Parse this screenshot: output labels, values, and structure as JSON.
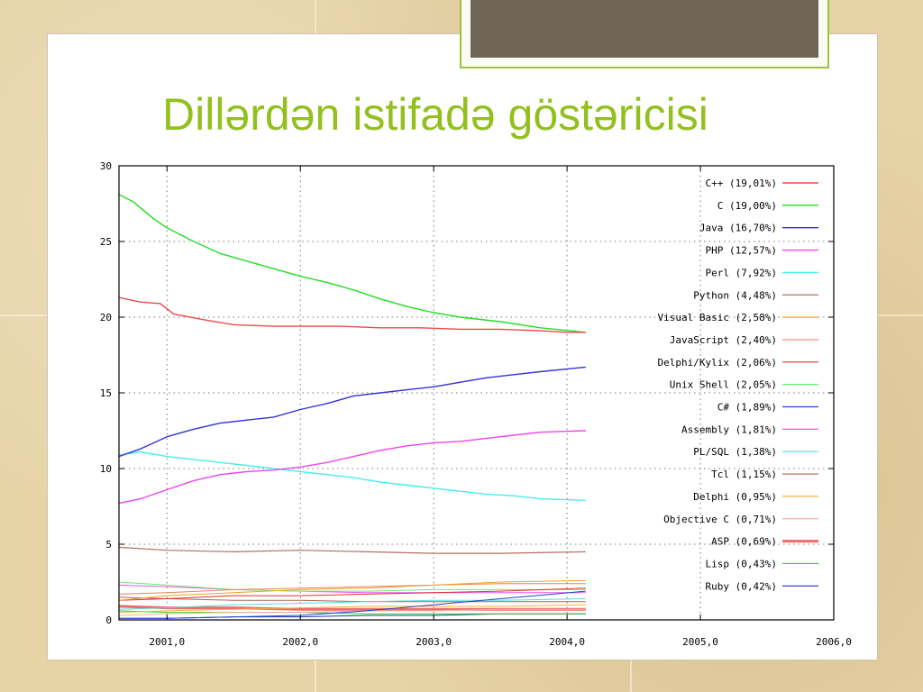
{
  "slide": {
    "title": "Dillərdən istifadə göstəricisi"
  },
  "colors": {
    "title": "#93c01f",
    "tab": "#6f6658",
    "tab_border": "#9cc43a"
  },
  "chart_data": {
    "type": "line",
    "title": "",
    "xlabel": "",
    "ylabel": "",
    "xlim": [
      2000.64,
      2006.0
    ],
    "ylim": [
      0,
      30
    ],
    "x_ticks": [
      "2001,0",
      "2002,0",
      "2003,0",
      "2004,0",
      "2005,0",
      "2006,0"
    ],
    "y_ticks": [
      "0",
      "5",
      "10",
      "15",
      "20",
      "25",
      "30"
    ],
    "grid": true,
    "legend_position": "top-right",
    "series": [
      {
        "name": "C++ (19,01%)",
        "color": "#f04848",
        "width": 1.4,
        "points": [
          [
            2000.64,
            21.3
          ],
          [
            2000.8,
            21.0
          ],
          [
            2000.95,
            20.9
          ],
          [
            2001.05,
            20.2
          ],
          [
            2001.3,
            19.8
          ],
          [
            2001.5,
            19.5
          ],
          [
            2001.8,
            19.4
          ],
          [
            2002.0,
            19.4
          ],
          [
            2002.3,
            19.4
          ],
          [
            2002.6,
            19.3
          ],
          [
            2002.9,
            19.3
          ],
          [
            2003.2,
            19.2
          ],
          [
            2003.5,
            19.2
          ],
          [
            2003.8,
            19.1
          ],
          [
            2004.0,
            19.0
          ],
          [
            2004.14,
            19.0
          ]
        ]
      },
      {
        "name": "C (19,00%)",
        "color": "#22dd22",
        "width": 1.4,
        "points": [
          [
            2000.64,
            28.1
          ],
          [
            2000.75,
            27.6
          ],
          [
            2000.9,
            26.5
          ],
          [
            2001.0,
            25.9
          ],
          [
            2001.2,
            25.0
          ],
          [
            2001.4,
            24.2
          ],
          [
            2001.6,
            23.7
          ],
          [
            2001.8,
            23.2
          ],
          [
            2002.0,
            22.7
          ],
          [
            2002.2,
            22.3
          ],
          [
            2002.4,
            21.8
          ],
          [
            2002.6,
            21.2
          ],
          [
            2002.8,
            20.7
          ],
          [
            2003.0,
            20.3
          ],
          [
            2003.2,
            20.0
          ],
          [
            2003.5,
            19.7
          ],
          [
            2003.8,
            19.3
          ],
          [
            2004.14,
            19.0
          ]
        ]
      },
      {
        "name": "Java (16,70%)",
        "color": "#3333dd",
        "width": 1.4,
        "points": [
          [
            2000.64,
            10.8
          ],
          [
            2000.8,
            11.3
          ],
          [
            2001.0,
            12.1
          ],
          [
            2001.2,
            12.6
          ],
          [
            2001.4,
            13.0
          ],
          [
            2001.6,
            13.2
          ],
          [
            2001.8,
            13.4
          ],
          [
            2002.0,
            13.9
          ],
          [
            2002.2,
            14.3
          ],
          [
            2002.4,
            14.8
          ],
          [
            2002.6,
            15.0
          ],
          [
            2002.8,
            15.2
          ],
          [
            2003.0,
            15.4
          ],
          [
            2003.2,
            15.7
          ],
          [
            2003.4,
            16.0
          ],
          [
            2003.6,
            16.2
          ],
          [
            2003.8,
            16.4
          ],
          [
            2004.14,
            16.7
          ]
        ]
      },
      {
        "name": "PHP (12,57%)",
        "color": "#ee44ee",
        "width": 1.4,
        "points": [
          [
            2000.64,
            7.7
          ],
          [
            2000.8,
            8.0
          ],
          [
            2001.0,
            8.6
          ],
          [
            2001.2,
            9.2
          ],
          [
            2001.4,
            9.6
          ],
          [
            2001.6,
            9.8
          ],
          [
            2001.8,
            9.9
          ],
          [
            2002.0,
            10.1
          ],
          [
            2002.2,
            10.4
          ],
          [
            2002.4,
            10.8
          ],
          [
            2002.6,
            11.2
          ],
          [
            2002.8,
            11.5
          ],
          [
            2003.0,
            11.7
          ],
          [
            2003.2,
            11.8
          ],
          [
            2003.4,
            12.0
          ],
          [
            2003.6,
            12.2
          ],
          [
            2003.8,
            12.4
          ],
          [
            2004.14,
            12.5
          ]
        ]
      },
      {
        "name": "Perl (7,92%)",
        "color": "#44eeee",
        "width": 1.4,
        "points": [
          [
            2000.64,
            10.9
          ],
          [
            2000.8,
            11.1
          ],
          [
            2001.0,
            10.8
          ],
          [
            2001.2,
            10.6
          ],
          [
            2001.4,
            10.4
          ],
          [
            2001.6,
            10.2
          ],
          [
            2001.8,
            10.0
          ],
          [
            2002.0,
            9.8
          ],
          [
            2002.2,
            9.6
          ],
          [
            2002.4,
            9.4
          ],
          [
            2002.6,
            9.1
          ],
          [
            2002.8,
            8.9
          ],
          [
            2003.0,
            8.7
          ],
          [
            2003.2,
            8.5
          ],
          [
            2003.4,
            8.3
          ],
          [
            2003.6,
            8.2
          ],
          [
            2003.8,
            8.0
          ],
          [
            2004.14,
            7.9
          ]
        ]
      },
      {
        "name": "Python (4,48%)",
        "color": "#b07060",
        "width": 1.2,
        "points": [
          [
            2000.64,
            4.8
          ],
          [
            2001.0,
            4.6
          ],
          [
            2001.5,
            4.5
          ],
          [
            2002.0,
            4.6
          ],
          [
            2002.5,
            4.5
          ],
          [
            2003.0,
            4.4
          ],
          [
            2003.5,
            4.4
          ],
          [
            2004.14,
            4.5
          ]
        ]
      },
      {
        "name": "Visual Basic (2,58%)",
        "color": "#f0a020",
        "width": 1.0,
        "points": [
          [
            2000.64,
            1.3
          ],
          [
            2001.0,
            1.6
          ],
          [
            2001.5,
            1.8
          ],
          [
            2002.0,
            2.0
          ],
          [
            2002.5,
            2.1
          ],
          [
            2003.0,
            2.3
          ],
          [
            2003.5,
            2.5
          ],
          [
            2004.14,
            2.6
          ]
        ]
      },
      {
        "name": "JavaScript (2,40%)",
        "color": "#f08060",
        "width": 1.0,
        "points": [
          [
            2000.64,
            1.7
          ],
          [
            2001.0,
            1.8
          ],
          [
            2001.5,
            2.0
          ],
          [
            2002.0,
            2.1
          ],
          [
            2002.5,
            2.2
          ],
          [
            2003.0,
            2.3
          ],
          [
            2003.5,
            2.4
          ],
          [
            2004.14,
            2.4
          ]
        ]
      },
      {
        "name": "Delphi/Kylix (2,06%)",
        "color": "#dd3333",
        "width": 1.0,
        "points": [
          [
            2000.64,
            1.3
          ],
          [
            2001.0,
            1.4
          ],
          [
            2001.5,
            1.6
          ],
          [
            2002.0,
            1.6
          ],
          [
            2002.5,
            1.7
          ],
          [
            2003.0,
            1.8
          ],
          [
            2003.5,
            1.9
          ],
          [
            2004.14,
            2.1
          ]
        ]
      },
      {
        "name": "Unix Shell (2,05%)",
        "color": "#66ee66",
        "width": 1.0,
        "points": [
          [
            2000.64,
            2.5
          ],
          [
            2001.0,
            2.3
          ],
          [
            2001.5,
            2.0
          ],
          [
            2002.0,
            1.9
          ],
          [
            2002.5,
            1.9
          ],
          [
            2003.0,
            2.0
          ],
          [
            2003.5,
            2.0
          ],
          [
            2004.14,
            2.0
          ]
        ]
      },
      {
        "name": "C# (1,89%)",
        "color": "#2244cc",
        "width": 1.0,
        "points": [
          [
            2000.64,
            0.1
          ],
          [
            2001.0,
            0.1
          ],
          [
            2001.5,
            0.2
          ],
          [
            2002.0,
            0.3
          ],
          [
            2002.5,
            0.6
          ],
          [
            2003.0,
            1.0
          ],
          [
            2003.5,
            1.4
          ],
          [
            2004.14,
            1.9
          ]
        ]
      },
      {
        "name": "Assembly (1,81%)",
        "color": "#ee55ee",
        "width": 1.0,
        "points": [
          [
            2000.64,
            2.3
          ],
          [
            2001.0,
            2.2
          ],
          [
            2001.5,
            2.0
          ],
          [
            2002.0,
            1.9
          ],
          [
            2002.5,
            1.8
          ],
          [
            2003.0,
            1.8
          ],
          [
            2003.5,
            1.8
          ],
          [
            2004.14,
            1.8
          ]
        ]
      },
      {
        "name": "PL/SQL (1,38%)",
        "color": "#55dddd",
        "width": 1.0,
        "points": [
          [
            2000.64,
            0.7
          ],
          [
            2001.0,
            0.8
          ],
          [
            2001.5,
            1.0
          ],
          [
            2002.0,
            1.1
          ],
          [
            2002.5,
            1.2
          ],
          [
            2003.0,
            1.3
          ],
          [
            2003.5,
            1.3
          ],
          [
            2004.14,
            1.4
          ]
        ]
      },
      {
        "name": "Tcl (1,15%)",
        "color": "#aa6655",
        "width": 1.0,
        "points": [
          [
            2000.64,
            1.5
          ],
          [
            2001.0,
            1.4
          ],
          [
            2001.5,
            1.3
          ],
          [
            2002.0,
            1.3
          ],
          [
            2002.5,
            1.2
          ],
          [
            2003.0,
            1.2
          ],
          [
            2003.5,
            1.2
          ],
          [
            2004.14,
            1.2
          ]
        ]
      },
      {
        "name": "Delphi (0,95%)",
        "color": "#f0b040",
        "width": 1.0,
        "points": [
          [
            2000.64,
            0.5
          ],
          [
            2001.0,
            0.6
          ],
          [
            2001.5,
            0.7
          ],
          [
            2002.0,
            0.8
          ],
          [
            2002.5,
            0.9
          ],
          [
            2003.0,
            0.9
          ],
          [
            2003.5,
            0.9
          ],
          [
            2004.14,
            1.0
          ]
        ]
      },
      {
        "name": "Objective C (0,71%)",
        "color": "#f8b0a0",
        "width": 1.0,
        "points": [
          [
            2000.64,
            0.3
          ],
          [
            2001.0,
            0.4
          ],
          [
            2001.5,
            0.5
          ],
          [
            2002.0,
            0.5
          ],
          [
            2002.5,
            0.6
          ],
          [
            2003.0,
            0.6
          ],
          [
            2003.5,
            0.7
          ],
          [
            2004.14,
            0.7
          ]
        ]
      },
      {
        "name": "ASP (0,69%)",
        "color": "#f06a6a",
        "width": 3.0,
        "points": [
          [
            2000.64,
            0.9
          ],
          [
            2001.0,
            0.8
          ],
          [
            2001.5,
            0.8
          ],
          [
            2002.0,
            0.7
          ],
          [
            2002.5,
            0.7
          ],
          [
            2003.0,
            0.7
          ],
          [
            2003.5,
            0.7
          ],
          [
            2004.14,
            0.7
          ]
        ]
      },
      {
        "name": "Lisp (0,43%)",
        "color": "#33cc33",
        "width": 1.0,
        "points": [
          [
            2000.64,
            0.6
          ],
          [
            2001.0,
            0.5
          ],
          [
            2001.5,
            0.5
          ],
          [
            2002.0,
            0.5
          ],
          [
            2002.5,
            0.4
          ],
          [
            2003.0,
            0.4
          ],
          [
            2003.5,
            0.4
          ],
          [
            2004.14,
            0.4
          ]
        ]
      },
      {
        "name": "Ruby (0,42%)",
        "color": "#2233bb",
        "width": 1.0,
        "points": [
          [
            2000.64,
            0.1
          ],
          [
            2001.0,
            0.1
          ],
          [
            2001.5,
            0.2
          ],
          [
            2002.0,
            0.2
          ],
          [
            2002.5,
            0.3
          ],
          [
            2003.0,
            0.3
          ],
          [
            2003.5,
            0.4
          ],
          [
            2004.14,
            0.4
          ]
        ]
      }
    ]
  }
}
